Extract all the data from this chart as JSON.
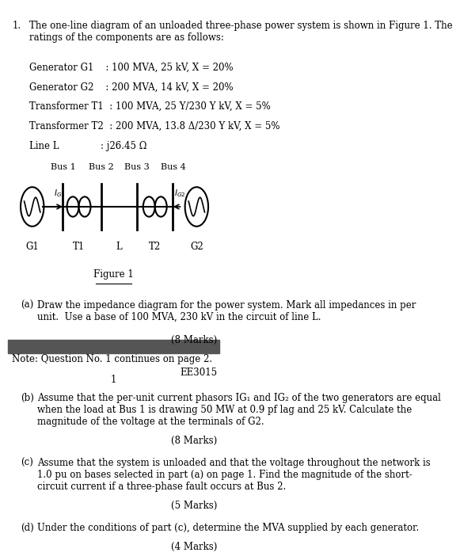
{
  "bg_color": "#ffffff",
  "divider_color": "#555555",
  "title_num": "1.",
  "title_text": "The one-line diagram of an unloaded three-phase power system is shown in Figure 1. The\nratings of the components are as follows:",
  "components": [
    "Generator G1    : 100 MVA, 25 kV, X = 20%",
    "Generator G2    : 200 MVA, 14 kV, X = 20%",
    "Transformer T1  : 100 MVA, 25 Y/230 Y kV, X = 5%",
    "Transformer T2  : 200 MVA, 13.8 Δ/230 Y kV, X = 5%",
    "Line L              : j26.45 Ω"
  ],
  "bus_labels": [
    "Bus 1",
    "Bus 2",
    "Bus 3",
    "Bus 4"
  ],
  "component_labels": [
    "G1",
    "T1",
    "L",
    "T2",
    "G2"
  ],
  "figure_label": "Figure 1",
  "part_a_label": "(a)",
  "part_a_text": "Draw the impedance diagram for the power system. Mark all impedances in per\nunit.  Use a base of 100 MVA, 230 kV in the circuit of line L.",
  "part_a_marks": "(8 Marks)",
  "note_text": "Note: Question No. 1 continues on page 2.",
  "page_num": "1",
  "course_code": "EE3015",
  "part_b_label": "(b)",
  "part_b_text": "Assume that the per-unit current phasors IG₁ and IG₂ of the two generators are equal\nwhen the load at Bus 1 is drawing 50 MW at 0.9 pf lag and 25 kV. Calculate the\nmagnitude of the voltage at the terminals of G2.",
  "part_b_marks": "(8 Marks)",
  "part_c_label": "(c)",
  "part_c_text": "Assume that the system is unloaded and that the voltage throughout the network is\n1.0 pu on bases selected in part (a) on page 1. Find the magnitude of the short-\ncircuit current if a three-phase fault occurs at Bus 2.",
  "part_c_marks": "(5 Marks)",
  "part_d_label": "(d)",
  "part_d_text": "Under the conditions of part (c), determine the MVA supplied by each generator.",
  "part_d_marks": "(4 Marks)"
}
